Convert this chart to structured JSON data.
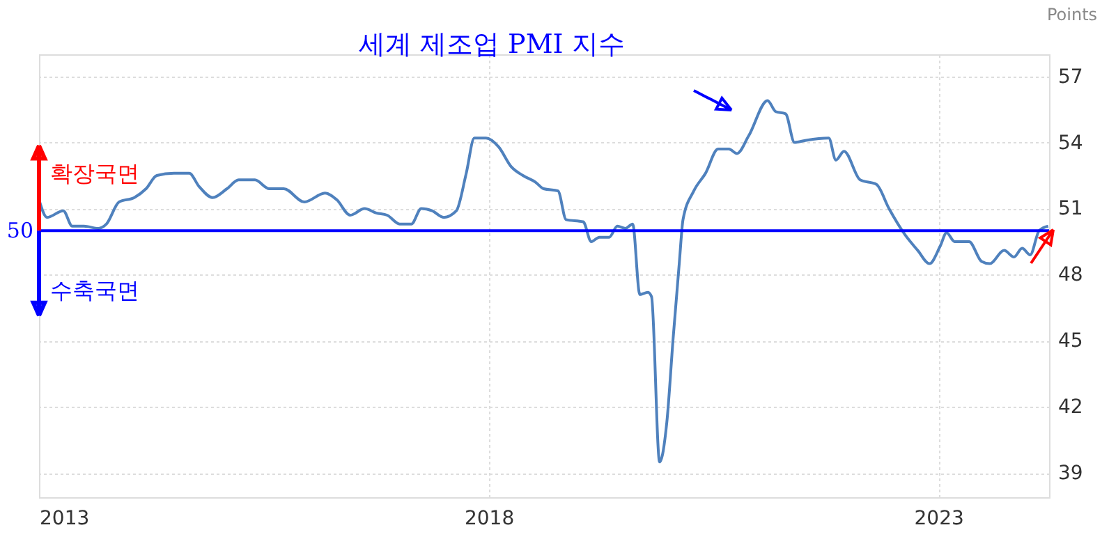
{
  "chart_data": {
    "type": "line",
    "title": "세계 제조업 PMI 지수",
    "ylabel": "Points",
    "x": [
      2013.0,
      2013.09,
      2013.27,
      2013.37,
      2013.5,
      2013.66,
      2013.75,
      2013.89,
      2014.06,
      2014.19,
      2014.31,
      2014.5,
      2014.67,
      2014.78,
      2014.93,
      2015.09,
      2015.22,
      2015.4,
      2015.56,
      2015.72,
      2015.95,
      2016.18,
      2016.31,
      2016.46,
      2016.62,
      2016.75,
      2016.87,
      2017.01,
      2017.14,
      2017.25,
      2017.37,
      2017.5,
      2017.64,
      2017.75,
      2017.84,
      2017.97,
      2018.11,
      2018.25,
      2018.38,
      2018.52,
      2018.61,
      2018.77,
      2018.86,
      2019.05,
      2019.14,
      2019.23,
      2019.34,
      2019.43,
      2019.52,
      2019.6,
      2019.68,
      2019.77,
      2019.81,
      2019.9,
      2019.98,
      2020.05,
      2020.12,
      2020.16,
      2020.28,
      2020.41,
      2020.55,
      2020.67,
      2020.76,
      2020.89,
      2021.1,
      2021.19,
      2021.3,
      2021.4,
      2021.53,
      2021.78,
      2021.86,
      2021.95,
      2022.13,
      2022.31,
      2022.45,
      2022.63,
      2022.77,
      2022.9,
      2023.02,
      2023.09,
      2023.18,
      2023.34,
      2023.48,
      2023.57,
      2023.73,
      2023.84,
      2023.93,
      2024.02,
      2024.12,
      2024.22
    ],
    "series": [
      {
        "color": "#4f81bd",
        "values": [
          51.4,
          50.6,
          50.9,
          50.2,
          50.2,
          50.1,
          50.3,
          51.3,
          51.5,
          51.9,
          52.5,
          52.6,
          52.6,
          52.0,
          51.5,
          51.9,
          52.3,
          52.3,
          51.9,
          51.9,
          51.3,
          51.7,
          51.4,
          50.7,
          51.0,
          50.8,
          50.7,
          50.3,
          50.3,
          51.0,
          50.9,
          50.6,
          50.9,
          52.6,
          54.2,
          54.2,
          53.8,
          52.9,
          52.5,
          52.2,
          51.9,
          51.8,
          50.5,
          50.4,
          49.5,
          49.7,
          49.7,
          50.2,
          50.1,
          50.3,
          47.1,
          47.2,
          47.0,
          39.5,
          41.3,
          45.1,
          48.6,
          50.5,
          51.8,
          52.6,
          53.7,
          53.7,
          53.5,
          54.3,
          55.9,
          55.4,
          55.3,
          54.0,
          54.1,
          54.2,
          53.2,
          53.6,
          52.3,
          52.1,
          51.0,
          49.8,
          49.1,
          48.5,
          49.3,
          49.9,
          49.5,
          49.5,
          48.6,
          48.5,
          49.1,
          48.8,
          49.2,
          48.9,
          50.0,
          50.2
        ]
      }
    ],
    "xlim": [
      2013.0,
      2024.23
    ],
    "xticks": [
      2013,
      2018,
      2023
    ],
    "ylim": [
      37.9,
      58
    ],
    "yticks": [
      39,
      42,
      45,
      48,
      51,
      54,
      57
    ],
    "grid": true,
    "ref_lines": [
      {
        "axis": "y",
        "value": 50,
        "label": "50",
        "color": "#0000ff"
      }
    ],
    "annotations": [
      {
        "text": "확장국면",
        "x": 2013,
        "y": 50
      },
      {
        "text": "수축국면",
        "x": 2013,
        "y": 50
      }
    ]
  }
}
